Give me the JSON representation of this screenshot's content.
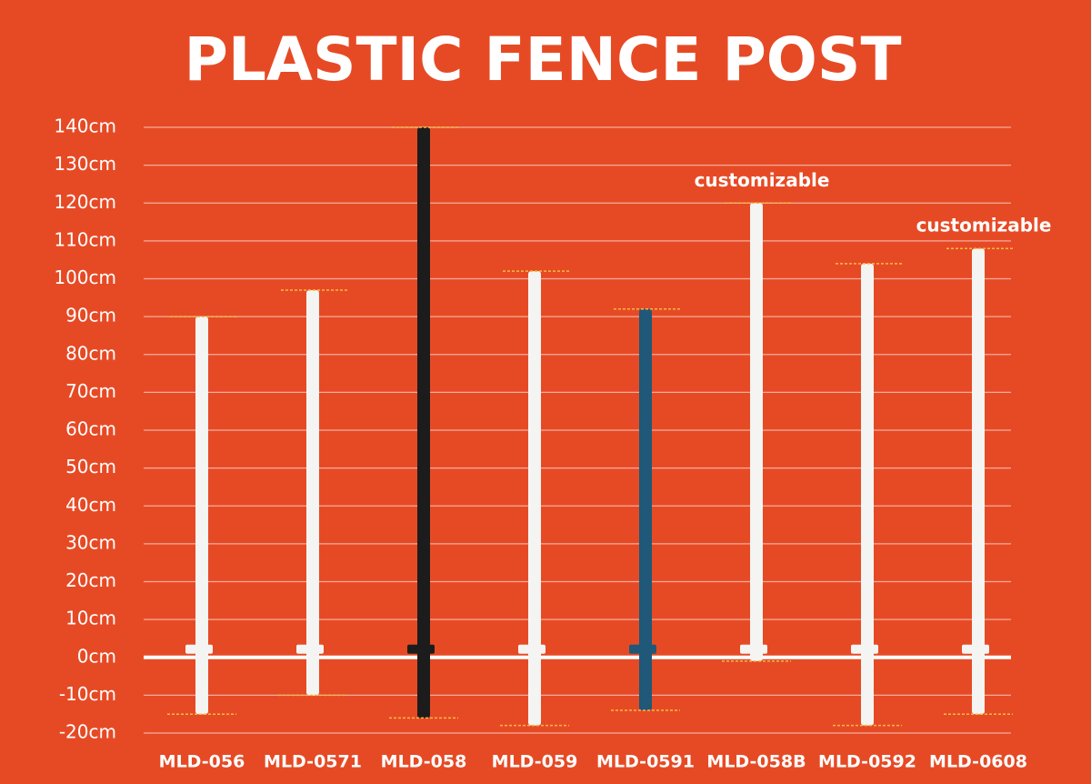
{
  "chart_data": {
    "type": "post",
    "title": "PLASTIC FENCE POST",
    "categories": [
      "MLD-056",
      "MLD-0571",
      "MLD-058",
      "MLD-059",
      "MLD-0591",
      "MLD-058B",
      "MLD-0592",
      "MLD-0608"
    ],
    "tops": [
      90,
      97,
      140,
      102,
      92,
      120,
      104,
      108
    ],
    "bottoms": [
      -15,
      -10,
      -16,
      -18,
      -14,
      -1,
      -18,
      -15
    ],
    "colors": [
      "#f4f4f2",
      "#f4f4f2",
      "#1c1c1c",
      "#f4f4f2",
      "#1f5878",
      "#f4f4f2",
      "#f4f4f2",
      "#f4f4f2"
    ],
    "ylim": [
      -20,
      140
    ],
    "yticks": [
      {
        "value": -20,
        "label": "-20cm"
      },
      {
        "value": -10,
        "label": "-10cm"
      },
      {
        "value": 0,
        "label": "0cm"
      },
      {
        "value": 10,
        "label": "10cm"
      },
      {
        "value": 20,
        "label": "20cm"
      },
      {
        "value": 30,
        "label": "30cm"
      },
      {
        "value": 40,
        "label": "40cm"
      },
      {
        "value": 50,
        "label": "50cm"
      },
      {
        "value": 60,
        "label": "60cm"
      },
      {
        "value": 70,
        "label": "70cm"
      },
      {
        "value": 80,
        "label": "80cm"
      },
      {
        "value": 90,
        "label": "90cm"
      },
      {
        "value": 100,
        "label": "100cm"
      },
      {
        "value": 110,
        "label": "110cm"
      },
      {
        "value": 120,
        "label": "120cm"
      },
      {
        "value": 130,
        "label": "130cm"
      },
      {
        "value": 140,
        "label": "140cm"
      }
    ],
    "grid": true,
    "annotations": [
      {
        "text": "customizable",
        "category": "MLD-058B"
      },
      {
        "text": "customizable",
        "category": "MLD-0608"
      }
    ]
  }
}
